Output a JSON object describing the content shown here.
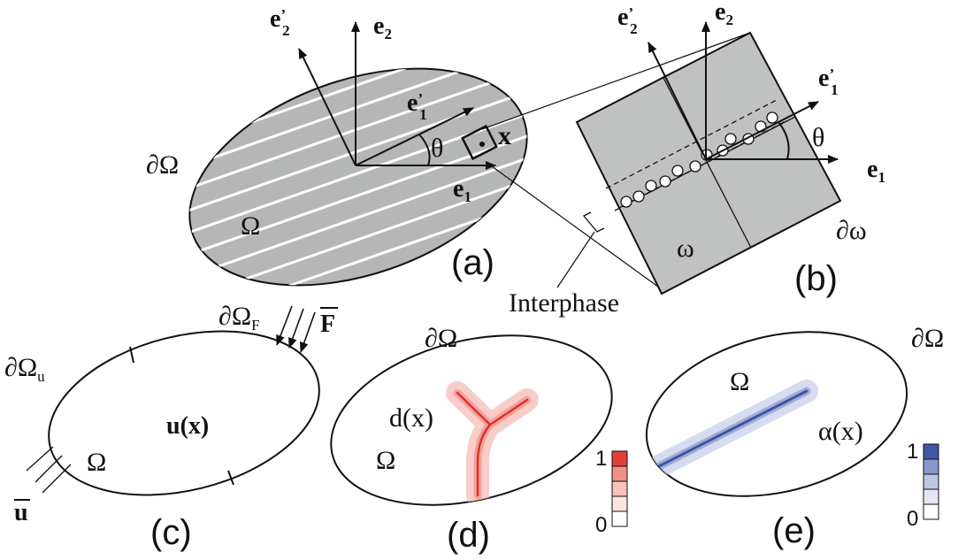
{
  "panel_a": {
    "label": "(a)",
    "domain": "Ω",
    "boundary": "∂Ω",
    "point": "x",
    "angle": "θ",
    "e1": "e",
    "e1_sub": "1",
    "e2": "e",
    "e2_sub": "2",
    "e1p": "e",
    "e1p_prime": "’",
    "e1p_sub": "1",
    "e2p": "e",
    "e2p_prime": "’",
    "e2p_sub": "2"
  },
  "panel_b": {
    "label": "(b)",
    "domain": "ω",
    "boundary": "∂ω",
    "angle": "θ",
    "interphase": "Interphase",
    "e1": "e",
    "e1_sub": "1",
    "e2": "e",
    "e2_sub": "2",
    "e1p": "e",
    "e1p_prime": "’",
    "e1p_sub": "1",
    "e2p": "e",
    "e2p_prime": "’",
    "e2p_sub": "2"
  },
  "panel_c": {
    "label": "(c)",
    "domain": "Ω",
    "field": "u(x)",
    "boundary_u": "∂Ω",
    "boundary_u_sub": "u",
    "boundary_f": "∂Ω",
    "boundary_f_sub": "F",
    "traction": "F",
    "displacement": "u"
  },
  "panel_d": {
    "label": "(d)",
    "domain": "Ω",
    "boundary": "∂Ω",
    "field": "d(x)",
    "colorbar_max": "1",
    "colorbar_min": "0",
    "colorbar_colors": [
      "#ffffff",
      "#fce6e4",
      "#f7c3bd",
      "#ef9188",
      "#e3403a"
    ]
  },
  "panel_e": {
    "label": "(e)",
    "domain": "Ω",
    "boundary": "∂Ω",
    "field": "α(x)",
    "colorbar_max": "1",
    "colorbar_min": "0",
    "colorbar_colors": [
      "#ffffff",
      "#e4e7f3",
      "#bfc6e4",
      "#8a97cd",
      "#3f55a6"
    ]
  },
  "colors": {
    "ellipse_fill": "#b4b7b5",
    "square_fill": "#c0c2c1",
    "stripe": "#ffffff",
    "crack_red": "#e0302a",
    "crack_red_halo": "#f6c0bb",
    "band_blue": "#3f55a6",
    "band_blue_halo": "#cfd5ec"
  }
}
